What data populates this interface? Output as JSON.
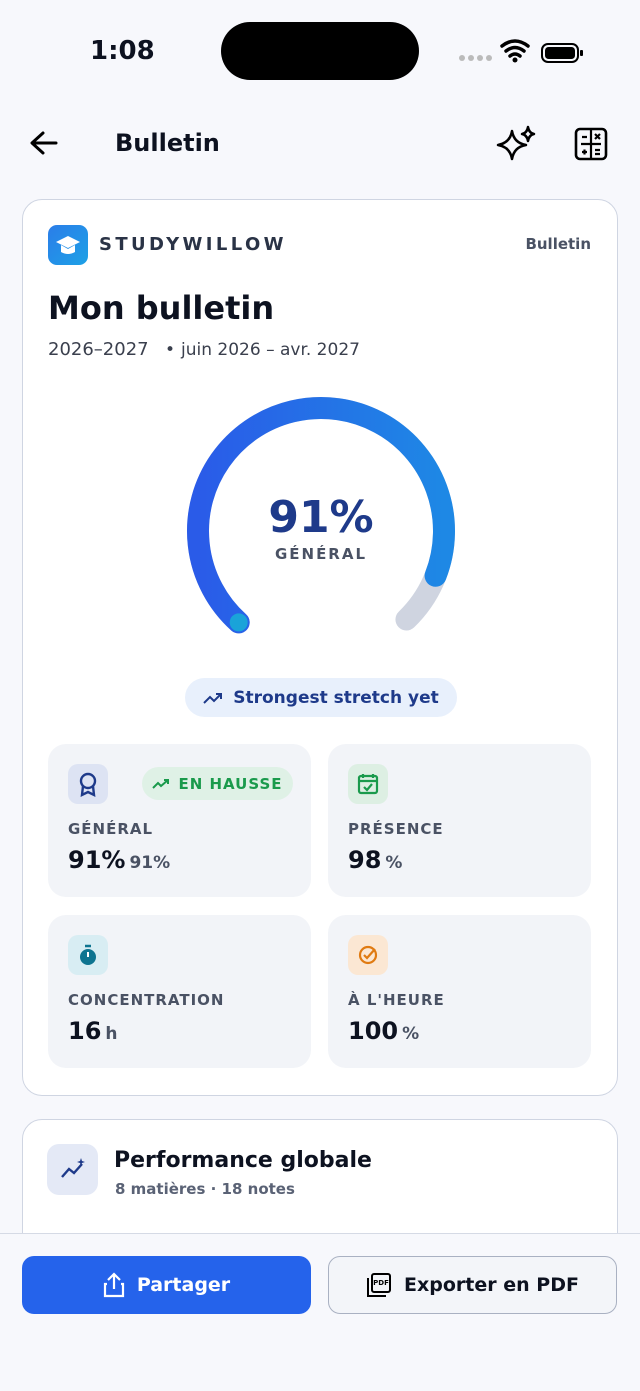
{
  "status_bar": {
    "time": "1:08"
  },
  "header": {
    "title": "Bulletin"
  },
  "report_card": {
    "brand": "STUDYWILLOW",
    "tag": "Bulletin",
    "title": "Mon bulletin",
    "year": "2026–2027",
    "period": "juin 2026 – avr. 2027",
    "gauge": {
      "value": 91,
      "label": "91%",
      "caption": "GÉNÉRAL"
    },
    "highlight": "Strongest stretch yet",
    "stats": [
      {
        "label": "GÉNÉRAL",
        "badge": "EN HAUSSE",
        "value": "91%",
        "detail": "91%"
      },
      {
        "label": "PRÉSENCE",
        "value": 98,
        "unit": "%"
      },
      {
        "label": "CONCENTRATION",
        "value": 16,
        "unit": "h"
      },
      {
        "label": "À L'HEURE",
        "value": 100,
        "unit": "%"
      }
    ]
  },
  "performance": {
    "title": "Performance globale",
    "subtitle": "8 matières · 18 notes"
  },
  "actions": {
    "share": "Partager",
    "export": "Exporter en PDF"
  }
}
